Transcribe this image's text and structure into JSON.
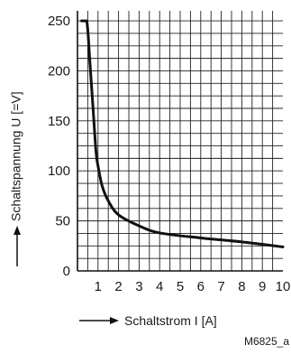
{
  "chart_data": {
    "type": "line",
    "xlabel": "Schaltstrom  I  [A]",
    "ylabel": "Schaltspannung U  [=V]",
    "figure_id": "M6825_a",
    "xlim": [
      0,
      10
    ],
    "ylim": [
      0,
      260
    ],
    "x_ticks": [
      1,
      2,
      3,
      4,
      5,
      6,
      7,
      8,
      9,
      10
    ],
    "y_ticks": [
      0,
      50,
      100,
      150,
      200,
      250
    ],
    "grid": true,
    "x_minor_step": 0.5,
    "y_minor_step": 12.5,
    "series": [
      {
        "x": [
          0.2,
          0.45,
          0.6,
          0.75,
          0.9,
          1.0,
          1.2,
          1.5,
          2.0,
          3.0,
          4.0,
          6.0,
          8.0,
          10.0
        ],
        "y": [
          250,
          250,
          210,
          165,
          120,
          105,
          85,
          70,
          56,
          45,
          38,
          33,
          29,
          24
        ]
      }
    ]
  }
}
